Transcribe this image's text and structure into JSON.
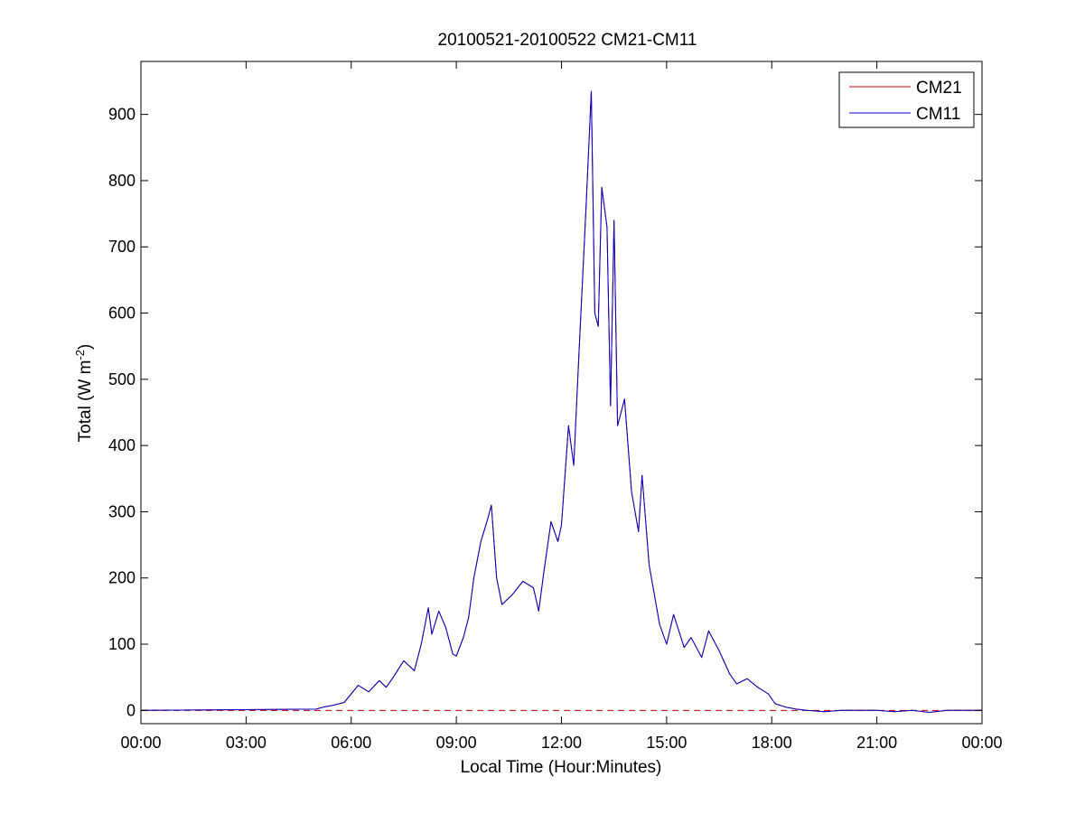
{
  "chart_data": {
    "type": "line",
    "title": "20100521-20100522 CM21-CM11",
    "xlabel": "Local Time (Hour:Minutes)",
    "ylabel_main": "Total (W m",
    "ylabel_sup": "-2",
    "ylabel_close": ")",
    "xlim": [
      0,
      24
    ],
    "ylim": [
      -20,
      980
    ],
    "x_ticks": [
      0,
      3,
      6,
      9,
      12,
      15,
      18,
      21,
      24
    ],
    "x_tick_labels": [
      "00:00",
      "03:00",
      "06:00",
      "09:00",
      "12:00",
      "15:00",
      "18:00",
      "21:00",
      "00:00"
    ],
    "y_ticks": [
      0,
      100,
      200,
      300,
      400,
      500,
      600,
      700,
      800,
      900
    ],
    "y_tick_labels": [
      "0",
      "100",
      "200",
      "300",
      "400",
      "500",
      "600",
      "700",
      "800",
      "900"
    ],
    "grid": false,
    "legend_position": "top-right",
    "zero_line": {
      "y": 0,
      "style": "dashed",
      "color": "#cc0000"
    },
    "series": [
      {
        "name": "CM21",
        "color": "#cc0000",
        "x": [
          0,
          5.0,
          5.2,
          5.5,
          5.8,
          6.0,
          6.2,
          6.5,
          6.8,
          7.0,
          7.2,
          7.5,
          7.8,
          8.0,
          8.2,
          8.3,
          8.5,
          8.7,
          8.9,
          9.0,
          9.2,
          9.35,
          9.5,
          9.7,
          9.9,
          10.0,
          10.15,
          10.3,
          10.6,
          10.9,
          11.2,
          11.35,
          11.5,
          11.7,
          11.9,
          12.0,
          12.2,
          12.35,
          12.5,
          12.7,
          12.85,
          12.95,
          13.05,
          13.15,
          13.3,
          13.4,
          13.5,
          13.6,
          13.8,
          14.0,
          14.2,
          14.3,
          14.5,
          14.8,
          15.0,
          15.2,
          15.5,
          15.7,
          16.0,
          16.2,
          16.5,
          16.8,
          17.0,
          17.3,
          17.6,
          17.9,
          18.1,
          18.4,
          18.7,
          19.0,
          19.5,
          20.0,
          20.5,
          21.0,
          21.5,
          22.0,
          22.5,
          23.0,
          24.0
        ],
        "y": [
          0,
          2,
          5,
          8,
          12,
          25,
          38,
          28,
          45,
          35,
          50,
          75,
          60,
          100,
          155,
          115,
          150,
          125,
          85,
          82,
          110,
          140,
          200,
          255,
          290,
          310,
          200,
          160,
          175,
          195,
          185,
          150,
          210,
          285,
          255,
          280,
          430,
          370,
          540,
          760,
          935,
          600,
          580,
          790,
          730,
          460,
          740,
          430,
          470,
          330,
          270,
          355,
          220,
          130,
          100,
          145,
          95,
          110,
          80,
          120,
          90,
          55,
          40,
          48,
          35,
          25,
          10,
          5,
          2,
          0,
          -2,
          0,
          0,
          0,
          -2,
          0,
          -3,
          0,
          0
        ]
      },
      {
        "name": "CM11",
        "color": "#0000cc",
        "x": [
          0,
          5.0,
          5.2,
          5.5,
          5.8,
          6.0,
          6.2,
          6.5,
          6.8,
          7.0,
          7.2,
          7.5,
          7.8,
          8.0,
          8.2,
          8.3,
          8.5,
          8.7,
          8.9,
          9.0,
          9.2,
          9.35,
          9.5,
          9.7,
          9.9,
          10.0,
          10.15,
          10.3,
          10.6,
          10.9,
          11.2,
          11.35,
          11.5,
          11.7,
          11.9,
          12.0,
          12.2,
          12.35,
          12.5,
          12.7,
          12.85,
          12.95,
          13.05,
          13.15,
          13.3,
          13.4,
          13.5,
          13.6,
          13.8,
          14.0,
          14.2,
          14.3,
          14.5,
          14.8,
          15.0,
          15.2,
          15.5,
          15.7,
          16.0,
          16.2,
          16.5,
          16.8,
          17.0,
          17.3,
          17.6,
          17.9,
          18.1,
          18.4,
          18.7,
          19.0,
          19.5,
          20.0,
          20.5,
          21.0,
          21.5,
          22.0,
          22.5,
          23.0,
          24.0
        ],
        "y": [
          0,
          2,
          5,
          8,
          12,
          25,
          38,
          28,
          45,
          35,
          50,
          75,
          60,
          100,
          155,
          115,
          150,
          125,
          85,
          82,
          110,
          140,
          200,
          255,
          290,
          310,
          200,
          160,
          175,
          195,
          185,
          150,
          210,
          285,
          255,
          280,
          430,
          370,
          540,
          760,
          935,
          600,
          580,
          790,
          730,
          460,
          740,
          430,
          470,
          330,
          270,
          355,
          220,
          130,
          100,
          145,
          95,
          110,
          80,
          120,
          90,
          55,
          40,
          48,
          35,
          25,
          10,
          5,
          2,
          0,
          -2,
          0,
          0,
          0,
          -2,
          0,
          -3,
          0,
          0
        ]
      }
    ]
  }
}
